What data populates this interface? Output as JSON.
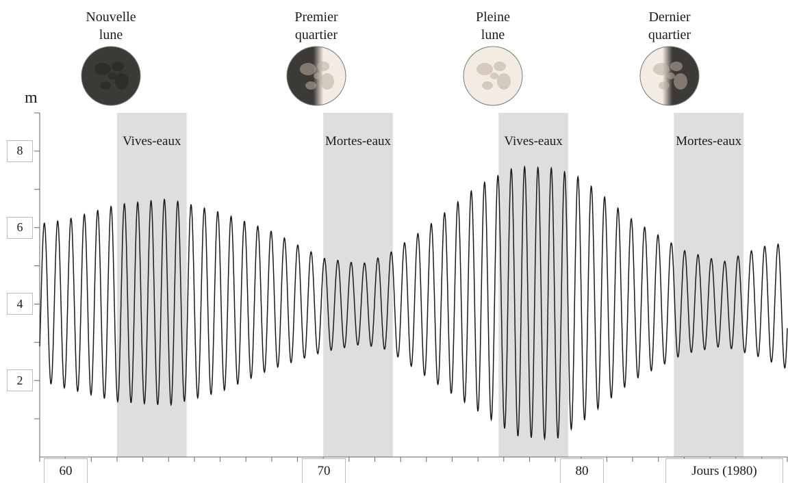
{
  "moon_phases": [
    {
      "line1": "Nouvelle",
      "line2": "lune",
      "phase": "new"
    },
    {
      "line1": "Premier",
      "line2": "quartier",
      "phase": "first-quarter"
    },
    {
      "line1": "Pleine",
      "line2": "lune",
      "phase": "full"
    },
    {
      "line1": "Dernier",
      "line2": "quartier",
      "phase": "last-quarter"
    }
  ],
  "chart_data": {
    "type": "line",
    "ylabel": "m",
    "xlabel": "Jours (1980)",
    "ytick_labels": [
      "2",
      "4",
      "6",
      "8"
    ],
    "xtick_labels": [
      "60",
      "70",
      "80"
    ],
    "xlim": [
      59,
      88
    ],
    "ylim": [
      0,
      9
    ],
    "grid": false,
    "zones": [
      {
        "label": "Vives-eaux",
        "x_start": 62.0,
        "x_end": 64.7
      },
      {
        "label": "Mortes-eaux",
        "x_start": 70.0,
        "x_end": 72.7
      },
      {
        "label": "Vives-eaux",
        "x_start": 76.8,
        "x_end": 79.5
      },
      {
        "label": "Mortes-eaux",
        "x_start": 83.6,
        "x_end": 86.3
      }
    ],
    "series": [
      {
        "description_free": true,
        "x_start": 59.0,
        "x_end": 88.0,
        "tidal_period_days": 0.5175,
        "peaks": [
          6.1,
          5.4,
          4.1,
          7.4,
          4.0,
          5.4,
          6.2,
          5.9,
          7.0,
          6.4
        ],
        "envelope_high": [
          [
            59,
            6.1
          ],
          [
            60,
            6.2
          ],
          [
            62,
            6.6
          ],
          [
            64,
            6.75
          ],
          [
            66,
            6.4
          ],
          [
            68,
            5.9
          ],
          [
            70,
            5.2
          ],
          [
            71.5,
            5.05
          ],
          [
            72.5,
            5.3
          ],
          [
            74,
            6.0
          ],
          [
            76,
            7.1
          ],
          [
            77.5,
            7.6
          ],
          [
            79,
            7.55
          ],
          [
            80,
            7.3
          ],
          [
            82,
            6.2
          ],
          [
            84,
            5.4
          ],
          [
            85.5,
            5.1
          ],
          [
            87,
            5.5
          ],
          [
            88,
            5.6
          ]
        ],
        "envelope_low": [
          [
            59,
            2.0
          ],
          [
            60,
            1.8
          ],
          [
            62,
            1.45
          ],
          [
            64,
            1.35
          ],
          [
            66,
            1.7
          ],
          [
            68,
            2.3
          ],
          [
            70,
            2.75
          ],
          [
            71.5,
            2.95
          ],
          [
            72.5,
            2.8
          ],
          [
            74,
            2.1
          ],
          [
            76,
            1.2
          ],
          [
            77.5,
            0.55
          ],
          [
            79,
            0.45
          ],
          [
            80,
            0.9
          ],
          [
            82,
            2.0
          ],
          [
            84,
            2.7
          ],
          [
            85.5,
            2.9
          ],
          [
            87,
            2.6
          ],
          [
            88,
            2.3
          ]
        ]
      }
    ]
  },
  "colors": {
    "zone": "#dedede",
    "line": "#1a1a1a",
    "axis": "#666666",
    "moon_dark": "#3b3a37",
    "moon_light": "#f3ece2"
  }
}
